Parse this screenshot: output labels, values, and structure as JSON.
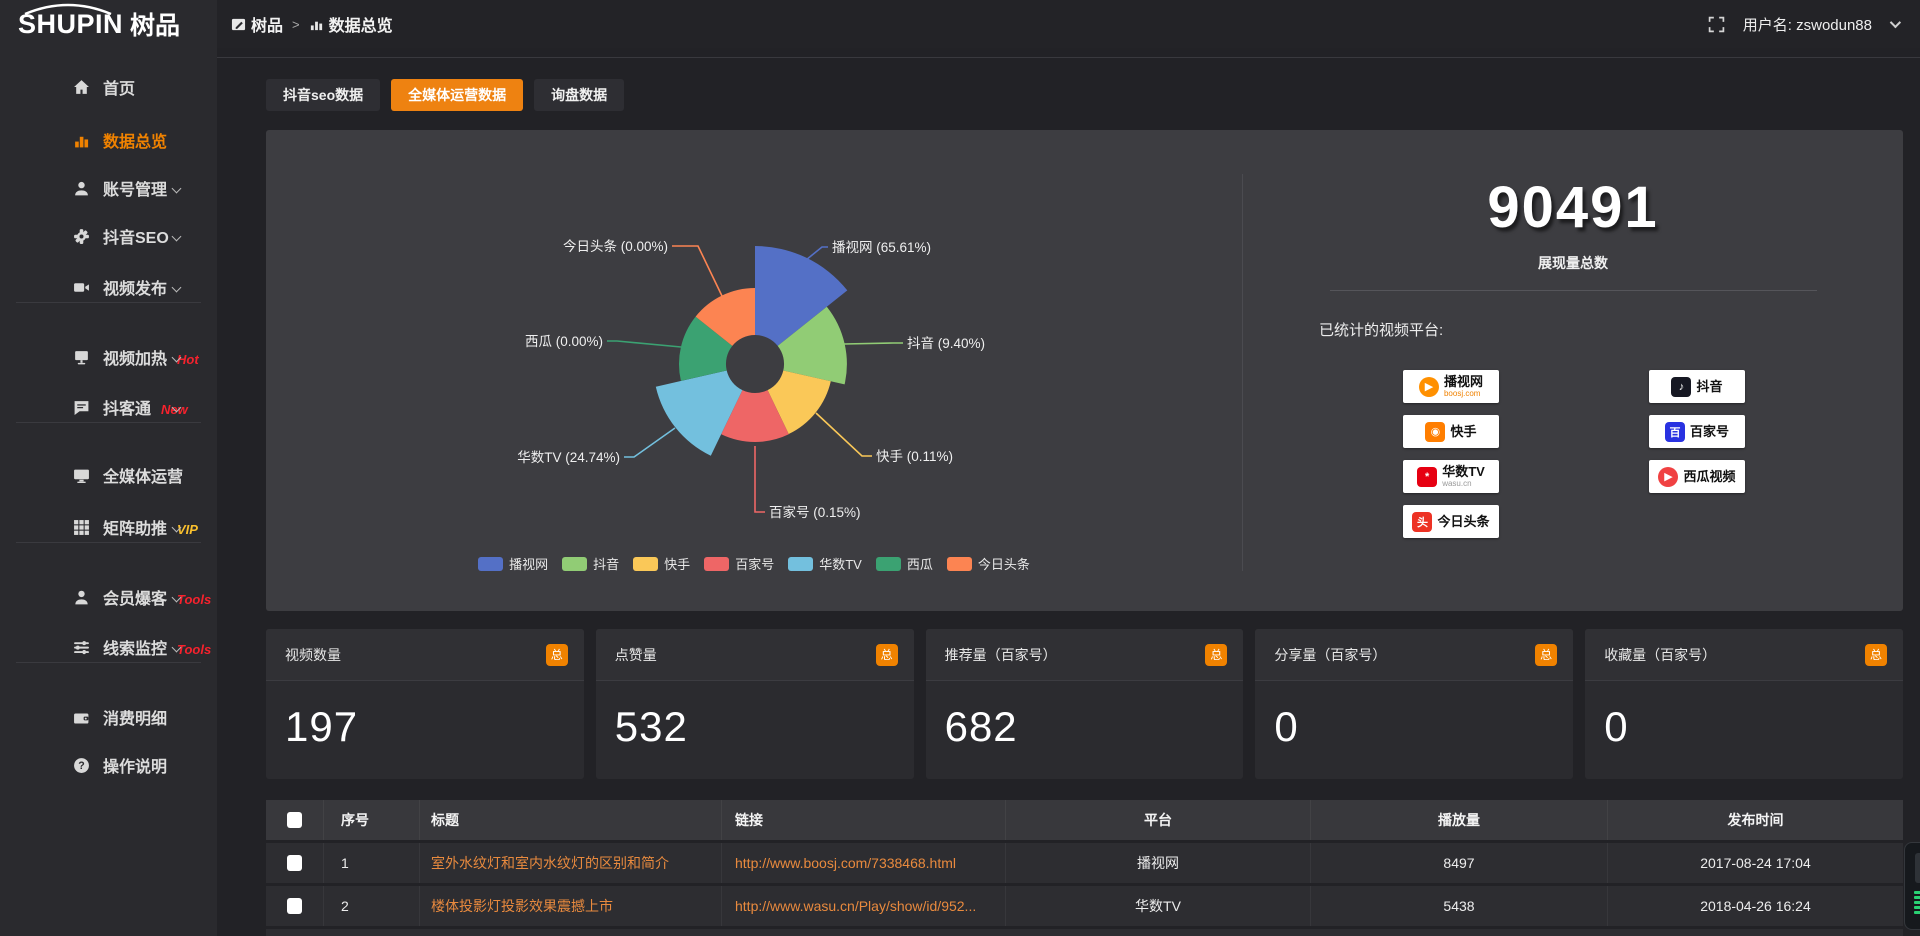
{
  "header": {
    "logo_en": "SHUPIN",
    "logo_cn": "树品",
    "breadcrumb_home": "树品",
    "breadcrumb_sep": ">",
    "breadcrumb_current": "数据总览",
    "username_prefix": "用户名:",
    "username": "zswodun88"
  },
  "tabs": [
    {
      "label": "抖音seo数据",
      "active": false
    },
    {
      "label": "全媒体运营数据",
      "active": true
    },
    {
      "label": "询盘数据",
      "active": false
    }
  ],
  "sidebar": {
    "items": [
      {
        "label": "首页",
        "icon": "home-icon",
        "active": false,
        "chevron": false,
        "badge": ""
      },
      {
        "label": "数据总览",
        "icon": "bar-chart-icon",
        "active": true,
        "chevron": false,
        "badge": ""
      },
      {
        "label": "账号管理",
        "icon": "user-icon",
        "chevron": true,
        "badge": ""
      },
      {
        "label": "抖音SEO",
        "icon": "gear-icon",
        "chevron": true,
        "badge": ""
      },
      {
        "label": "视频发布",
        "icon": "video-publish-icon",
        "chevron": true,
        "badge": "",
        "divider_after": true
      },
      {
        "label": "视频加热",
        "icon": "hot-video-icon",
        "chevron": true,
        "badge": "Hot",
        "badge_color": "#f5222d"
      },
      {
        "label": "抖客通",
        "icon": "chat-icon",
        "chevron": true,
        "badge": "New",
        "badge_color": "#f5222d",
        "divider_after": true
      },
      {
        "label": "全媒体运营",
        "icon": "monitor-icon",
        "chevron": true,
        "badge": ""
      },
      {
        "label": "矩阵助推",
        "icon": "grid-icon",
        "chevron": true,
        "badge": "VIP",
        "badge_color": "#fac02d",
        "divider_after": true
      },
      {
        "label": "会员爆客",
        "icon": "member-icon",
        "chevron": true,
        "badge": "Tools",
        "badge_color": "#f5222d"
      },
      {
        "label": "线索监控",
        "icon": "sliders-icon",
        "chevron": true,
        "badge": "Tools",
        "badge_color": "#f5222d",
        "divider_after": true
      },
      {
        "label": "消费明细",
        "icon": "wallet-icon",
        "chevron": false,
        "badge": ""
      },
      {
        "label": "操作说明",
        "icon": "help-icon",
        "chevron": false,
        "badge": ""
      }
    ]
  },
  "chart_data": {
    "type": "pie",
    "subtype": "nightingale-rose-donut",
    "categories": [
      "播视网",
      "抖音",
      "快手",
      "百家号",
      "华数TV",
      "西瓜",
      "今日头条"
    ],
    "values_percent": [
      65.61,
      9.4,
      0.11,
      0.15,
      24.74,
      0.0,
      0.0
    ],
    "colors": [
      "#5470c6",
      "#91cc75",
      "#fac858",
      "#ee6666",
      "#73c0de",
      "#3ba272",
      "#fc8452"
    ],
    "label_format": "name (value%)",
    "legend_position": "bottom-center",
    "title": ""
  },
  "summary": {
    "total_value": "90491",
    "total_label": "展现量总数",
    "platforms_title": "已统计的视频平台:",
    "platforms": [
      {
        "name": "播视网",
        "sub": "boosj.com",
        "icon": "boosj-logo",
        "col": 0
      },
      {
        "name": "抖音",
        "sub": "",
        "icon": "douyin-logo",
        "col": 1
      },
      {
        "name": "快手",
        "sub": "",
        "icon": "kuaishou-logo",
        "col": 0
      },
      {
        "name": "百家号",
        "sub": "",
        "icon": "baijiahao-logo",
        "col": 1
      },
      {
        "name": "华数TV",
        "sub": "wasu.cn",
        "icon": "wasu-logo",
        "col": 0,
        "sub_gray": true
      },
      {
        "name": "西瓜视频",
        "sub": "",
        "icon": "xigua-logo",
        "col": 1
      },
      {
        "name": "今日头条",
        "sub": "",
        "icon": "toutiao-logo",
        "col": 0
      }
    ]
  },
  "stat_cards": [
    {
      "title": "视频数量",
      "badge": "总",
      "value": "197"
    },
    {
      "title": "点赞量",
      "badge": "总",
      "value": "532"
    },
    {
      "title": "推荐量（百家号）",
      "badge": "总",
      "value": "682"
    },
    {
      "title": "分享量（百家号）",
      "badge": "总",
      "value": "0"
    },
    {
      "title": "收藏量（百家号）",
      "badge": "总",
      "value": "0"
    }
  ],
  "table": {
    "headers": [
      "序号",
      "标题",
      "链接",
      "平台",
      "播放量",
      "发布时间"
    ],
    "rows": [
      {
        "index": "1",
        "title": "室外水纹灯和室内水纹灯的区别和简介",
        "link": "http://www.boosj.com/7338468.html",
        "platform": "播视网",
        "plays": "8497",
        "time": "2017-08-24 17:04",
        "checked": false
      },
      {
        "index": "2",
        "title": "楼体投影灯投影效果震撼上市",
        "link": "http://www.wasu.cn/Play/show/id/952...",
        "platform": "华数TV",
        "plays": "5438",
        "time": "2018-04-26 16:24",
        "checked": false
      }
    ]
  }
}
